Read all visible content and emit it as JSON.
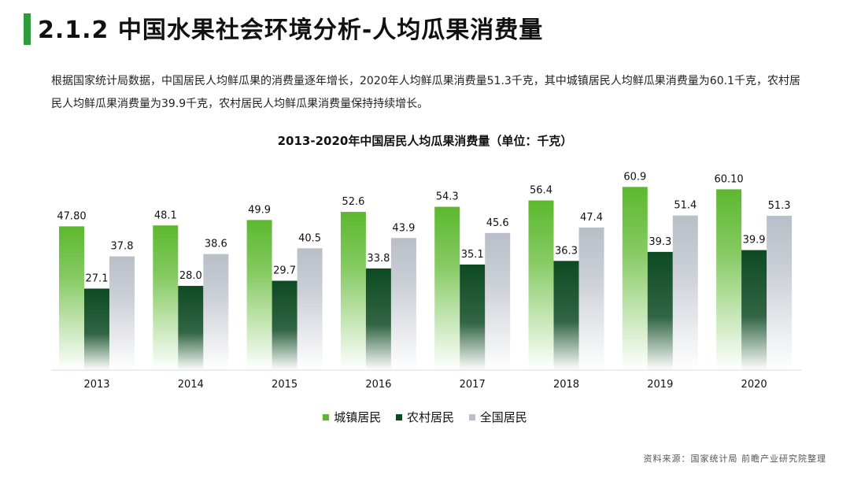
{
  "header": {
    "title": "2.1.2 中国水果社会环境分析-人均瓜果消费量"
  },
  "intro_text": "根据国家统计局数据，中国居民人均鲜瓜果的消费量逐年增长，2020年人均鲜瓜果消费量51.3千克，其中城镇居民人均鲜瓜果消费量为60.1千克，农村居民人均鲜瓜果消费量为39.9千克，农村居民人均鲜瓜果消费量保持持续增长。",
  "source": "资料来源：国家统计局 前瞻产业研究院整理",
  "colors": {
    "accent": "#2f9c3c",
    "urban": "#5cb82e",
    "rural": "#0d4a22",
    "national": "#b9bfc8"
  },
  "chart_data": {
    "type": "bar",
    "title": "2013-2020年中国居民人均瓜果消费量（单位：千克）",
    "categories": [
      "2013",
      "2014",
      "2015",
      "2016",
      "2017",
      "2018",
      "2019",
      "2020"
    ],
    "series": [
      {
        "name": "城镇居民",
        "values": [
          47.8,
          48.1,
          49.9,
          52.6,
          54.3,
          56.4,
          60.9,
          60.1
        ],
        "labels": [
          "47.80",
          "48.1",
          "49.9",
          "52.6",
          "54.3",
          "56.4",
          "60.9",
          "60.10"
        ]
      },
      {
        "name": "农村居民",
        "values": [
          27.1,
          28.0,
          29.7,
          33.8,
          35.1,
          36.3,
          39.3,
          39.9
        ],
        "labels": [
          "27.1",
          "28.0",
          "29.7",
          "33.8",
          "35.1",
          "36.3",
          "39.3",
          "39.9"
        ]
      },
      {
        "name": "全国居民",
        "values": [
          37.8,
          38.6,
          40.5,
          43.9,
          45.6,
          47.4,
          51.4,
          51.3
        ],
        "labels": [
          "37.8",
          "38.6",
          "40.5",
          "43.9",
          "45.6",
          "47.4",
          "51.4",
          "51.3"
        ]
      }
    ],
    "legend_position": "bottom",
    "grid": false
  }
}
